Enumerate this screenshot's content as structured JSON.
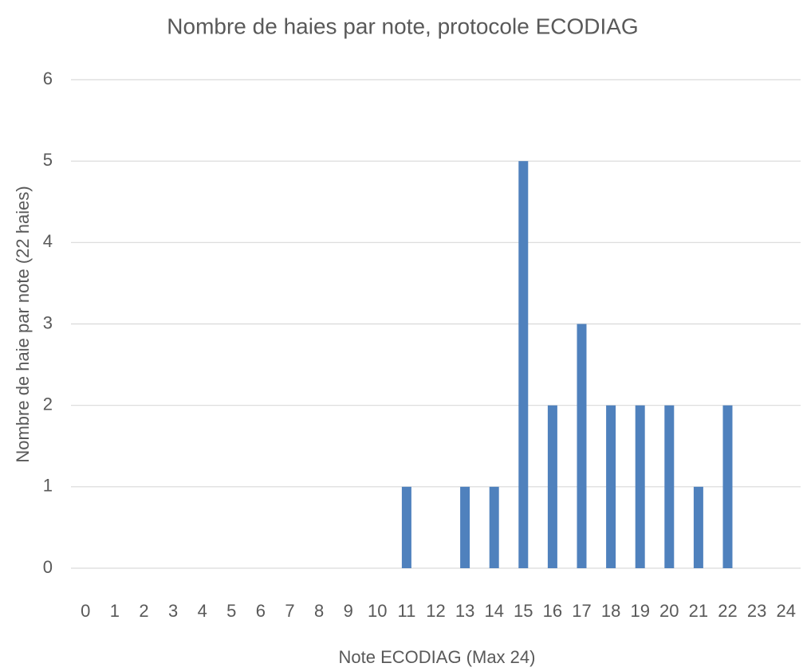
{
  "chart_data": {
    "type": "bar",
    "title": "Nombre de haies par note, protocole ECODIAG",
    "x_label": "Note ECODIAG (Max 24)",
    "y_label": "Nombre de haie par note (22 haies)",
    "categories": [
      "0",
      "1",
      "2",
      "3",
      "4",
      "5",
      "6",
      "7",
      "8",
      "9",
      "10",
      "11",
      "12",
      "13",
      "14",
      "15",
      "16",
      "17",
      "18",
      "19",
      "20",
      "21",
      "22",
      "23",
      "24"
    ],
    "values": [
      0,
      0,
      0,
      0,
      0,
      0,
      0,
      0,
      0,
      0,
      0,
      1,
      0,
      1,
      1,
      5,
      2,
      3,
      2,
      2,
      2,
      1,
      2,
      0,
      0
    ],
    "color": "#4f81bd",
    "ylim": [
      0,
      6
    ],
    "yticks": [
      0,
      1,
      2,
      3,
      4,
      5,
      6
    ],
    "grid": true
  }
}
